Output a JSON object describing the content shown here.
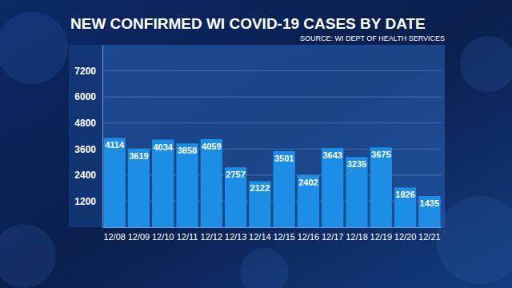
{
  "chart_data": {
    "type": "bar",
    "title": "NEW CONFIRMED WI COVID-19 CASES BY DATE",
    "subtitle": "SOURCE: WI DEPT OF HEALTH SERVICES",
    "categories": [
      "12/08",
      "12/09",
      "12/10",
      "12/11",
      "12/12",
      "12/13",
      "12/14",
      "12/15",
      "12/16",
      "12/17",
      "12/18",
      "12/19",
      "12/20",
      "12/21"
    ],
    "values": [
      4114,
      3619,
      4034,
      3858,
      4059,
      2757,
      2122,
      3501,
      2402,
      3643,
      3235,
      3675,
      1826,
      1435
    ],
    "color": "#1c8ee6",
    "ylim": [
      0,
      8400
    ],
    "yticks": [
      1200,
      2400,
      3600,
      4800,
      6000,
      7200
    ],
    "grid": true,
    "data_labels": true
  }
}
